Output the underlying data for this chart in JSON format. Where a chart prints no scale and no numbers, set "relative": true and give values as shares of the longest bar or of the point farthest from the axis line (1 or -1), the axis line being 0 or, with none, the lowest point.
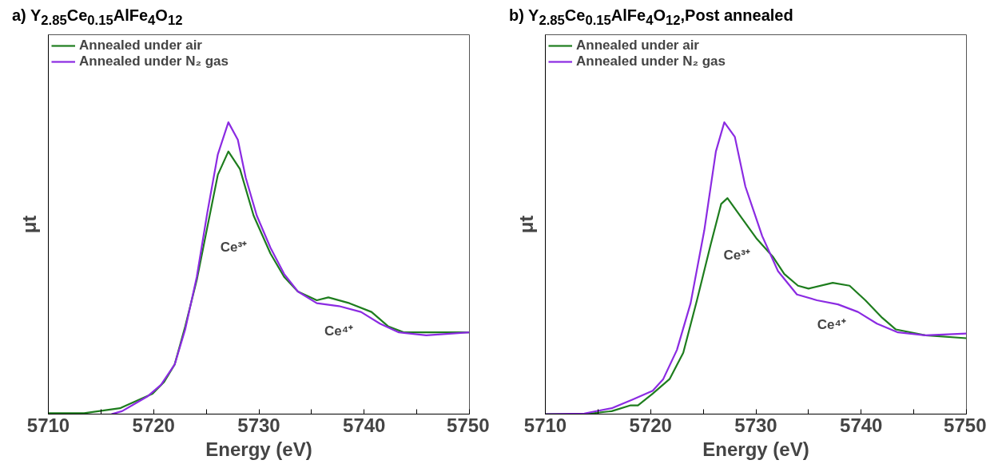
{
  "chart_data": [
    {
      "type": "line",
      "title": "a) Y$_{2.85}$Ce$_{0.15}$AlFe$_{4}$O$_{12}$",
      "xlabel": "Energy (eV)",
      "ylabel": "μt",
      "relative": true,
      "tick_labels": "x",
      "grid": false,
      "legend": "top left",
      "marker": "none",
      "line_style": "solid",
      "xlim": [
        5710,
        5750
      ],
      "xticks": [
        5710,
        {
          "value": 5715,
          "label": null
        },
        5720,
        {
          "value": 5725,
          "label": null
        },
        5730,
        {
          "value": 5735,
          "label": null
        },
        5740,
        {
          "value": 5745,
          "label": null
        },
        5750
      ],
      "series": [
        {
          "name": "Annealed under air",
          "color": "#1e7d1e",
          "x": [
            5710,
            5713.4,
            5716.8,
            5719.9,
            5721,
            5722,
            5723,
            5724.1,
            5725.1,
            5726.1,
            5727.1,
            5728.2,
            5729.5,
            5731.1,
            5732.4,
            5733.7,
            5735.5,
            5736.6,
            5738.6,
            5740.7,
            5742.3,
            5743.8,
            5747.2,
            5750
          ],
          "values": [
            0.003,
            0.003,
            0.02,
            0.07,
            0.11,
            0.17,
            0.3,
            0.46,
            0.64,
            0.82,
            0.9,
            0.84,
            0.68,
            0.55,
            0.47,
            0.42,
            0.39,
            0.4,
            0.38,
            0.35,
            0.3,
            0.28,
            0.28,
            0.28
          ]
        },
        {
          "name": "Annealed under N₂ gas",
          "color": "#8b2be2",
          "x": [
            5716,
            5717,
            5719.4,
            5720.7,
            5722,
            5723,
            5724.1,
            5725.1,
            5726.1,
            5727.1,
            5728,
            5728.75,
            5729.8,
            5731.1,
            5732.4,
            5733.7,
            5735.5,
            5737.6,
            5739.7,
            5741.5,
            5743.3,
            5745.9,
            5750
          ],
          "values": [
            0,
            0.01,
            0.06,
            0.1,
            0.17,
            0.29,
            0.47,
            0.69,
            0.89,
            1.0,
            0.94,
            0.81,
            0.68,
            0.57,
            0.48,
            0.42,
            0.38,
            0.37,
            0.35,
            0.31,
            0.28,
            0.27,
            0.28
          ]
        }
      ],
      "annotations": [
        "Ce³⁺",
        "Ce⁴⁺"
      ]
    },
    {
      "type": "line",
      "title": "b) Y$_{2.85}$Ce$_{0.15}$AlFe$_{4}$O$_{12}$,Post annealed",
      "xlabel": "Energy (eV)",
      "ylabel": "μt",
      "relative": true,
      "tick_labels": "x",
      "grid": false,
      "legend": "top left",
      "marker": "none",
      "line_style": "solid",
      "xlim": [
        5710,
        5750
      ],
      "xticks": [
        5710,
        {
          "value": 5715,
          "label": null
        },
        5720,
        {
          "value": 5725,
          "label": null
        },
        5730,
        {
          "value": 5735,
          "label": null
        },
        5740,
        {
          "value": 5745,
          "label": null
        },
        5750
      ],
      "series": [
        {
          "name": "Annealed under air",
          "color": "#1e7d1e",
          "x": [
            5710,
            5713.7,
            5716.3,
            5718.1,
            5718.8,
            5720.2,
            5721.8,
            5723.1,
            5724.4,
            5725.7,
            5726.7,
            5727.3,
            5728.5,
            5730.1,
            5731.6,
            5732.7,
            5734,
            5735,
            5737.3,
            5738.9,
            5740.4,
            5742,
            5743.3,
            5746.1,
            5750
          ],
          "values": [
            0,
            0,
            0.01,
            0.03,
            0.03,
            0.07,
            0.12,
            0.21,
            0.39,
            0.58,
            0.72,
            0.74,
            0.68,
            0.6,
            0.54,
            0.48,
            0.44,
            0.43,
            0.45,
            0.44,
            0.39,
            0.33,
            0.29,
            0.27,
            0.26
          ]
        },
        {
          "name": "Annealed under N₂ gas",
          "color": "#8b2be2",
          "x": [
            5710,
            5713.7,
            5716.3,
            5718.3,
            5720.2,
            5721.2,
            5722.5,
            5723.8,
            5725.1,
            5726.2,
            5727,
            5728,
            5729,
            5730.6,
            5732.1,
            5733.9,
            5735.8,
            5737.8,
            5739.7,
            5741.5,
            5743.5,
            5746.1,
            5750
          ],
          "values": [
            0,
            0.002,
            0.02,
            0.05,
            0.08,
            0.12,
            0.22,
            0.38,
            0.63,
            0.9,
            1.0,
            0.95,
            0.78,
            0.61,
            0.49,
            0.41,
            0.39,
            0.376,
            0.35,
            0.31,
            0.28,
            0.27,
            0.276
          ]
        }
      ],
      "annotations": [
        "Ce³⁺",
        "Ce⁴⁺"
      ]
    }
  ]
}
